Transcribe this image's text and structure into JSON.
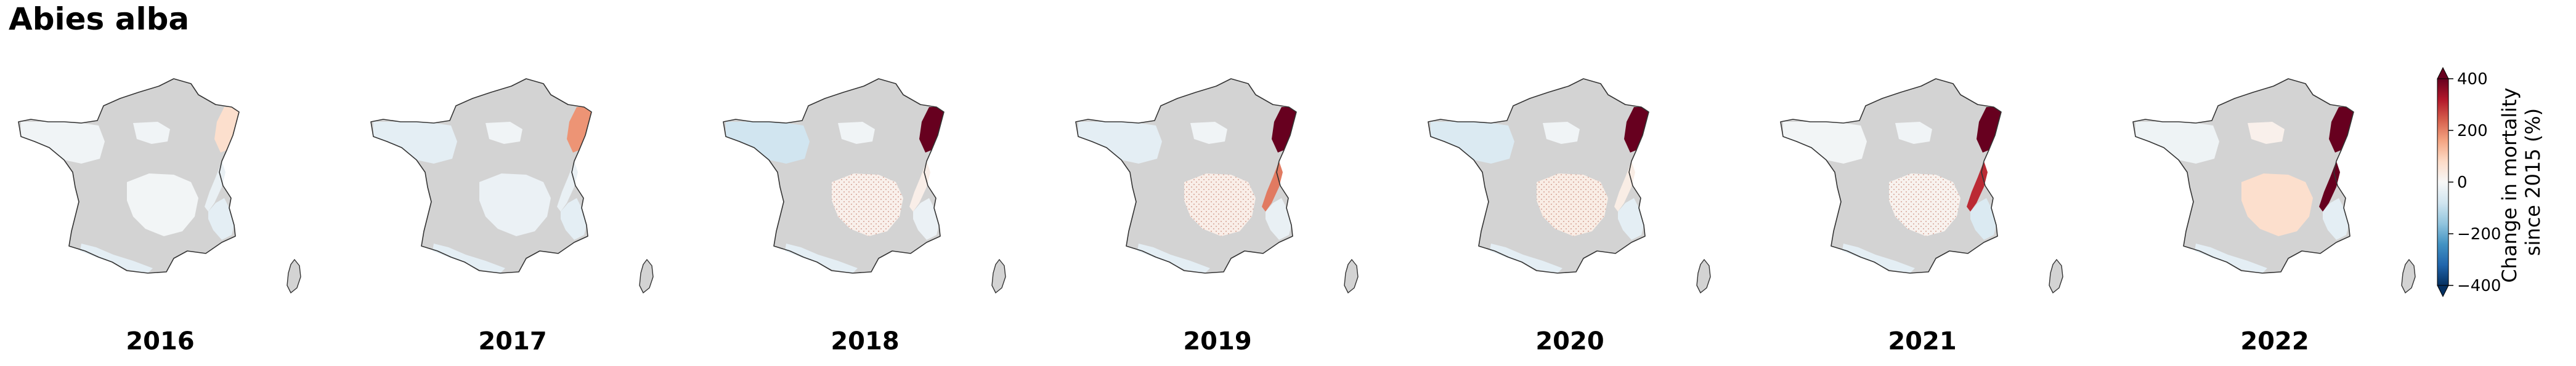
{
  "title": "Abies alba",
  "colors": {
    "no_data": "#d3d3d3",
    "outline": "#333333",
    "cmap": "RdBu_r"
  },
  "colorbar": {
    "label_line1": "Change in mortality",
    "label_line2": "since 2015 (%)",
    "ticks": [
      "400",
      "200",
      "0",
      "−200",
      "−400"
    ],
    "range": [
      -400,
      400
    ],
    "extend": "both"
  },
  "chart_data": {
    "type": "choropleth",
    "title": "Abies alba",
    "variable": "Change in mortality since 2015 (%)",
    "vmin": -400,
    "vmax": 400,
    "regions": [
      "northwest",
      "northeast",
      "jura_alps_north",
      "alps_south",
      "massif_central",
      "pyrenees",
      "north_central"
    ],
    "years": [
      "2016",
      "2017",
      "2018",
      "2019",
      "2020",
      "2021",
      "2022"
    ],
    "panels": [
      {
        "year": "2016",
        "values": {
          "northwest": -15,
          "northeast": 70,
          "jura_alps_north": -30,
          "alps_south": -40,
          "massif_central": -10,
          "pyrenees": -40,
          "north_central": -15
        }
      },
      {
        "year": "2017",
        "values": {
          "northwest": -40,
          "northeast": 180,
          "jura_alps_north": -30,
          "alps_south": -40,
          "massif_central": -25,
          "pyrenees": -40,
          "north_central": -15
        }
      },
      {
        "year": "2018",
        "values": {
          "northwest": -80,
          "northeast": 400,
          "jura_alps_north": 25,
          "alps_south": -25,
          "massif_central": 20,
          "pyrenees": -40,
          "north_central": -15
        }
      },
      {
        "year": "2019",
        "values": {
          "northwest": -40,
          "northeast": 400,
          "jura_alps_north": 210,
          "alps_south": -30,
          "massif_central": 25,
          "pyrenees": -40,
          "north_central": -15
        }
      },
      {
        "year": "2020",
        "values": {
          "northwest": -60,
          "northeast": 400,
          "jura_alps_north": 30,
          "alps_south": -40,
          "massif_central": 30,
          "pyrenees": -40,
          "north_central": -15
        }
      },
      {
        "year": "2021",
        "values": {
          "northwest": -10,
          "northeast": 400,
          "jura_alps_north": 300,
          "alps_south": -60,
          "massif_central": 15,
          "pyrenees": -40,
          "north_central": -15
        }
      },
      {
        "year": "2022",
        "values": {
          "northwest": -20,
          "northeast": 400,
          "jura_alps_north": 400,
          "alps_south": -40,
          "massif_central": 70,
          "pyrenees": -40,
          "north_central": 20
        }
      }
    ],
    "hatched_regions": {
      "2018": [
        "massif_central"
      ],
      "2019": [
        "massif_central"
      ],
      "2020": [
        "massif_central"
      ],
      "2021": [
        "massif_central"
      ]
    }
  }
}
